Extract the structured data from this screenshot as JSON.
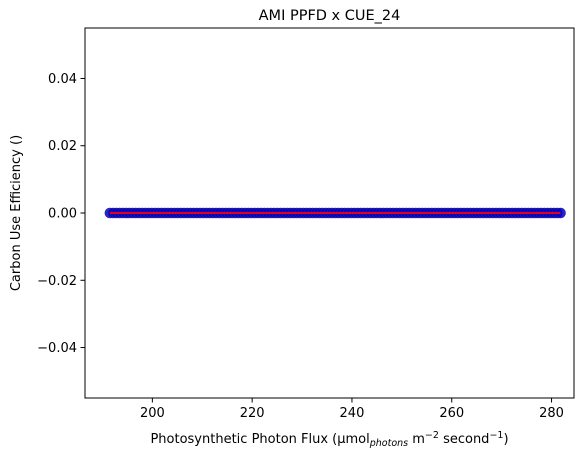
{
  "chart_data": {
    "type": "scatter",
    "title": "AMI PPFD x CUE_24",
    "xlabel": {
      "main": "Photosynthetic Photon Flux (µmol",
      "sub": "photons",
      "mid": " m",
      "sup1": "−2",
      "end": " second",
      "sup2": "−1",
      "close": ")"
    },
    "ylabel": "Carbon Use Efficiency ()",
    "xlim": [
      186.5,
      284.5
    ],
    "ylim": [
      -0.055,
      0.055
    ],
    "x_ticks": [
      200,
      220,
      240,
      260,
      280
    ],
    "y_ticks": [
      -0.04,
      -0.02,
      0.0,
      0.02,
      0.04
    ],
    "x_tick_labels": [
      "200",
      "220",
      "240",
      "260",
      "280"
    ],
    "y_tick_labels": [
      "−0.04",
      "−0.02",
      "0.00",
      "0.02",
      "0.04"
    ],
    "grid": false,
    "series": [
      {
        "kind": "points",
        "color": "#0000cc",
        "x_range": [
          191.5,
          281.8
        ],
        "y_value": 0.0
      },
      {
        "kind": "fit-line",
        "color": "#ff0000",
        "x": [
          191.5,
          281.8
        ],
        "y": [
          0.0,
          0.0
        ]
      }
    ]
  }
}
